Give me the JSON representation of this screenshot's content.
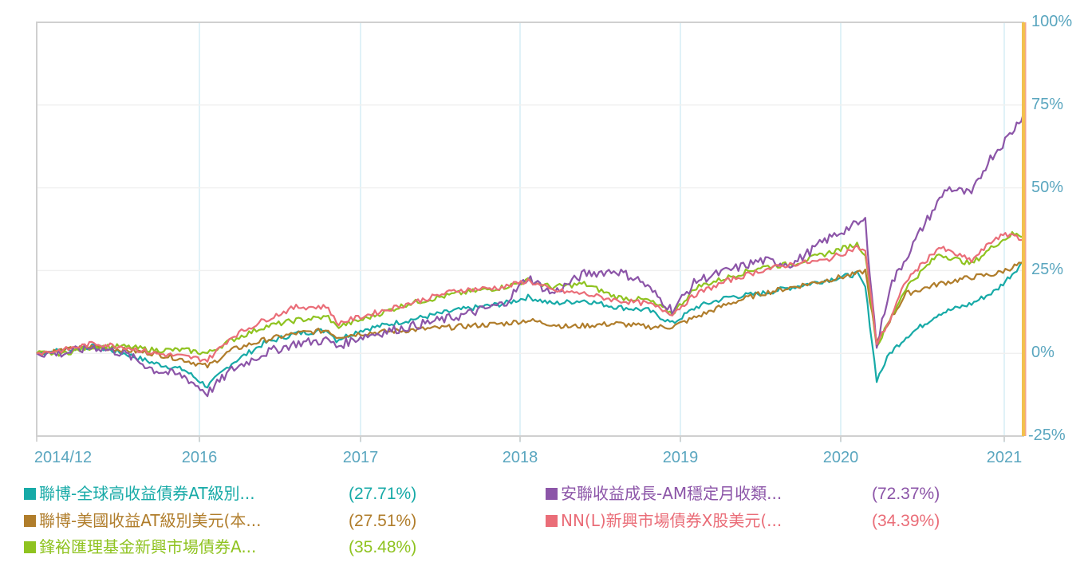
{
  "chart_data": {
    "type": "line",
    "title": "",
    "xlabel": "",
    "ylabel": "",
    "ylim": [
      -25,
      100
    ],
    "y_ticks": [
      "100%",
      "75%",
      "50%",
      "25%",
      "0%",
      "-25%"
    ],
    "x_ticks": [
      "2014/12",
      "2016",
      "2017",
      "2018",
      "2019",
      "2020",
      "2021"
    ],
    "grid": true,
    "legend_position": "bottom",
    "x_domain": [
      2014.92,
      2021.12
    ],
    "series": [
      {
        "name": "聯博-全球高收益債券AT級別...",
        "return": "(27.71%)",
        "color": "#17aaa7",
        "points": [
          [
            2014.92,
            0
          ],
          [
            2015.1,
            1
          ],
          [
            2015.3,
            2
          ],
          [
            2015.5,
            0
          ],
          [
            2015.7,
            -3
          ],
          [
            2015.9,
            -5
          ],
          [
            2016.05,
            -10
          ],
          [
            2016.2,
            -3
          ],
          [
            2016.4,
            3
          ],
          [
            2016.6,
            6
          ],
          [
            2016.8,
            7
          ],
          [
            2016.85,
            4
          ],
          [
            2017.0,
            7
          ],
          [
            2017.3,
            10
          ],
          [
            2017.6,
            13
          ],
          [
            2017.9,
            15
          ],
          [
            2018.05,
            17
          ],
          [
            2018.2,
            15
          ],
          [
            2018.4,
            16
          ],
          [
            2018.6,
            14
          ],
          [
            2018.8,
            13
          ],
          [
            2018.95,
            9
          ],
          [
            2019.1,
            14
          ],
          [
            2019.3,
            17
          ],
          [
            2019.5,
            18
          ],
          [
            2019.7,
            20
          ],
          [
            2019.9,
            22
          ],
          [
            2020.1,
            24
          ],
          [
            2020.15,
            20
          ],
          [
            2020.22,
            -8
          ],
          [
            2020.3,
            0
          ],
          [
            2020.4,
            5
          ],
          [
            2020.6,
            12
          ],
          [
            2020.8,
            15
          ],
          [
            2020.95,
            19
          ],
          [
            2021.05,
            24
          ],
          [
            2021.12,
            27.7
          ]
        ]
      },
      {
        "name": "聯博-美國收益AT級別美元(本...",
        "return": "(27.51%)",
        "color": "#b07d2b",
        "points": [
          [
            2014.92,
            0
          ],
          [
            2015.1,
            1
          ],
          [
            2015.3,
            2
          ],
          [
            2015.5,
            1
          ],
          [
            2015.7,
            0
          ],
          [
            2015.9,
            -2
          ],
          [
            2016.05,
            -4
          ],
          [
            2016.2,
            1
          ],
          [
            2016.4,
            4
          ],
          [
            2016.6,
            6
          ],
          [
            2016.8,
            7
          ],
          [
            2016.85,
            5
          ],
          [
            2017.0,
            6
          ],
          [
            2017.3,
            7
          ],
          [
            2017.6,
            8
          ],
          [
            2017.9,
            9
          ],
          [
            2018.05,
            10
          ],
          [
            2018.3,
            8
          ],
          [
            2018.6,
            9
          ],
          [
            2018.8,
            8
          ],
          [
            2018.95,
            8
          ],
          [
            2019.1,
            11
          ],
          [
            2019.3,
            15
          ],
          [
            2019.5,
            18
          ],
          [
            2019.7,
            20
          ],
          [
            2019.9,
            22
          ],
          [
            2020.1,
            24
          ],
          [
            2020.15,
            25
          ],
          [
            2020.22,
            3
          ],
          [
            2020.3,
            10
          ],
          [
            2020.4,
            18
          ],
          [
            2020.6,
            21
          ],
          [
            2020.8,
            23
          ],
          [
            2020.95,
            24
          ],
          [
            2021.05,
            26
          ],
          [
            2021.12,
            27.5
          ]
        ]
      },
      {
        "name": "鋒裕匯理基金新興市場債券A...",
        "return": "(35.48%)",
        "color": "#8fc320",
        "points": [
          [
            2014.92,
            0
          ],
          [
            2015.1,
            0
          ],
          [
            2015.3,
            2
          ],
          [
            2015.5,
            2
          ],
          [
            2015.7,
            1
          ],
          [
            2015.9,
            1
          ],
          [
            2016.05,
            0
          ],
          [
            2016.2,
            4
          ],
          [
            2016.4,
            8
          ],
          [
            2016.6,
            10
          ],
          [
            2016.8,
            11
          ],
          [
            2016.85,
            8
          ],
          [
            2017.0,
            10
          ],
          [
            2017.3,
            15
          ],
          [
            2017.6,
            18
          ],
          [
            2017.9,
            20
          ],
          [
            2018.05,
            22
          ],
          [
            2018.2,
            20
          ],
          [
            2018.4,
            21
          ],
          [
            2018.6,
            17
          ],
          [
            2018.8,
            16
          ],
          [
            2018.95,
            12
          ],
          [
            2019.1,
            20
          ],
          [
            2019.3,
            23
          ],
          [
            2019.5,
            26
          ],
          [
            2019.7,
            27
          ],
          [
            2019.9,
            30
          ],
          [
            2020.1,
            33
          ],
          [
            2020.15,
            30
          ],
          [
            2020.22,
            2
          ],
          [
            2020.3,
            10
          ],
          [
            2020.4,
            20
          ],
          [
            2020.6,
            30
          ],
          [
            2020.8,
            27
          ],
          [
            2020.95,
            33
          ],
          [
            2021.05,
            36
          ],
          [
            2021.12,
            35.5
          ]
        ]
      },
      {
        "name": "安聯收益成長-AM穩定月收類...",
        "return": "(72.37%)",
        "color": "#8c55a8",
        "points": [
          [
            2014.92,
            0
          ],
          [
            2015.1,
            0
          ],
          [
            2015.3,
            2
          ],
          [
            2015.5,
            0
          ],
          [
            2015.7,
            -5
          ],
          [
            2015.9,
            -7
          ],
          [
            2016.05,
            -12
          ],
          [
            2016.2,
            -5
          ],
          [
            2016.4,
            0
          ],
          [
            2016.6,
            3
          ],
          [
            2016.8,
            4
          ],
          [
            2016.85,
            2
          ],
          [
            2017.0,
            5
          ],
          [
            2017.3,
            8
          ],
          [
            2017.6,
            11
          ],
          [
            2017.9,
            15
          ],
          [
            2018.05,
            23
          ],
          [
            2018.2,
            18
          ],
          [
            2018.4,
            24
          ],
          [
            2018.6,
            25
          ],
          [
            2018.75,
            22
          ],
          [
            2018.95,
            13
          ],
          [
            2019.1,
            22
          ],
          [
            2019.3,
            25
          ],
          [
            2019.5,
            28
          ],
          [
            2019.7,
            27
          ],
          [
            2019.9,
            34
          ],
          [
            2020.05,
            38
          ],
          [
            2020.15,
            40
          ],
          [
            2020.22,
            2
          ],
          [
            2020.3,
            20
          ],
          [
            2020.5,
            38
          ],
          [
            2020.65,
            50
          ],
          [
            2020.8,
            48
          ],
          [
            2020.9,
            58
          ],
          [
            2021.05,
            67
          ],
          [
            2021.12,
            72.4
          ]
        ]
      },
      {
        "name": "NN(L)新興市場債券X股美元(...",
        "return": "(34.39%)",
        "color": "#ea6d78",
        "points": [
          [
            2014.92,
            0
          ],
          [
            2015.1,
            1
          ],
          [
            2015.3,
            3
          ],
          [
            2015.5,
            2
          ],
          [
            2015.7,
            0
          ],
          [
            2015.9,
            -1
          ],
          [
            2016.05,
            -2
          ],
          [
            2016.2,
            5
          ],
          [
            2016.4,
            10
          ],
          [
            2016.6,
            14
          ],
          [
            2016.8,
            14
          ],
          [
            2016.85,
            9
          ],
          [
            2017.0,
            11
          ],
          [
            2017.3,
            15
          ],
          [
            2017.6,
            19
          ],
          [
            2017.9,
            20
          ],
          [
            2018.05,
            22
          ],
          [
            2018.2,
            19
          ],
          [
            2018.4,
            18
          ],
          [
            2018.6,
            16
          ],
          [
            2018.8,
            15
          ],
          [
            2018.95,
            12
          ],
          [
            2019.1,
            18
          ],
          [
            2019.3,
            22
          ],
          [
            2019.5,
            25
          ],
          [
            2019.7,
            27
          ],
          [
            2019.9,
            28
          ],
          [
            2020.1,
            32
          ],
          [
            2020.15,
            31
          ],
          [
            2020.22,
            3
          ],
          [
            2020.3,
            10
          ],
          [
            2020.4,
            22
          ],
          [
            2020.6,
            32
          ],
          [
            2020.8,
            28
          ],
          [
            2020.95,
            35
          ],
          [
            2021.05,
            36
          ],
          [
            2021.12,
            34.4
          ]
        ]
      }
    ]
  },
  "axes": {
    "y_ticks": [
      {
        "label": "100%",
        "value": 100
      },
      {
        "label": "75%",
        "value": 75
      },
      {
        "label": "50%",
        "value": 50
      },
      {
        "label": "25%",
        "value": 25
      },
      {
        "label": "0%",
        "value": 0
      },
      {
        "label": "-25%",
        "value": -25
      }
    ],
    "x_ticks": [
      {
        "label": "2014/12",
        "value": 2014.92
      },
      {
        "label": "2016",
        "value": 2016.0
      },
      {
        "label": "2017",
        "value": 2017.0
      },
      {
        "label": "2018",
        "value": 2018.0
      },
      {
        "label": "2019",
        "value": 2019.0
      },
      {
        "label": "2020",
        "value": 2020.0
      },
      {
        "label": "2021",
        "value": 2021.0
      }
    ]
  },
  "legend": {
    "items": [
      {
        "label": "聯博-全球高收益債券AT級別...",
        "value": "(27.71%)",
        "color": "#17aaa7"
      },
      {
        "label": "聯博-美國收益AT級別美元(本...",
        "value": "(27.51%)",
        "color": "#b07d2b"
      },
      {
        "label": "鋒裕匯理基金新興市場債券A...",
        "value": "(35.48%)",
        "color": "#8fc320"
      },
      {
        "label": "安聯收益成長-AM穩定月收類...",
        "value": "(72.37%)",
        "color": "#8c55a8"
      },
      {
        "label": "NN(L)新興市場債券X股美元(...",
        "value": "(34.39%)",
        "color": "#ea6d78"
      }
    ]
  },
  "colors": {
    "axis_text": "#5aa6bf",
    "gridline_vertical": "#d6edf5",
    "gridline_horizontal": "#f0f0f0",
    "plot_border": "#d0d0d0",
    "cursor_line": "#f2c14e"
  }
}
